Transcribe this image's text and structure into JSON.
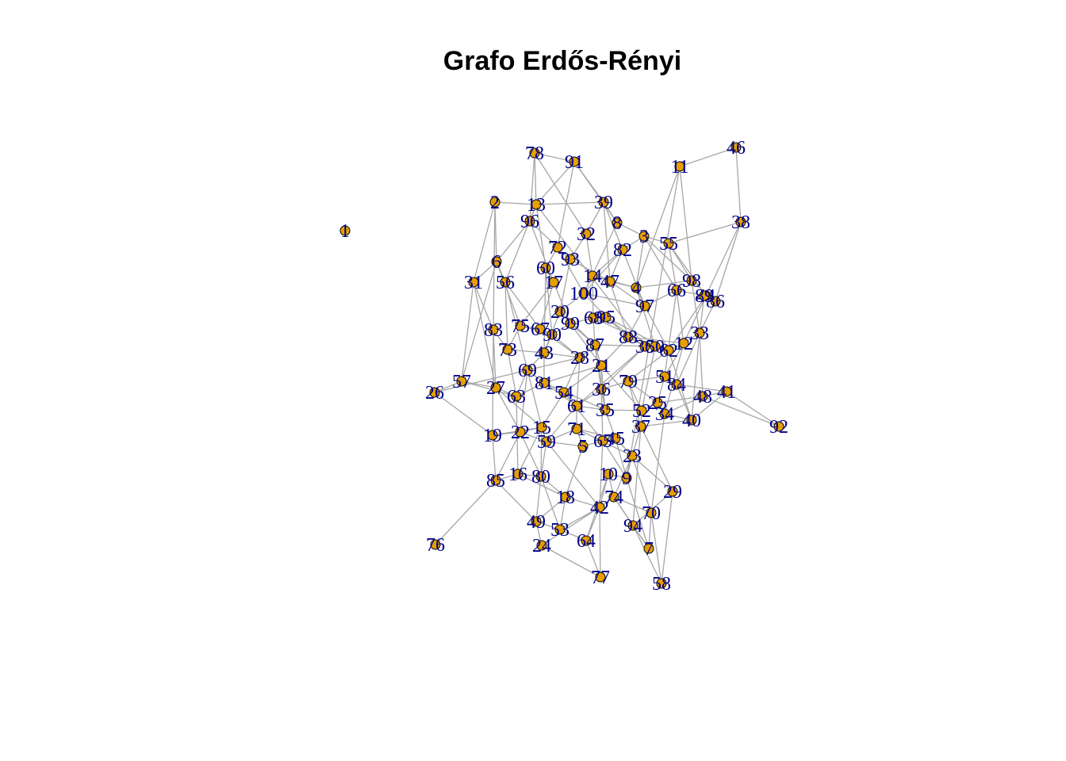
{
  "title": "Grafo Erdős-Rényi",
  "colors": {
    "vertex": "#e69f00",
    "vertex_border": "#000000",
    "label": "#00008b",
    "edge": "#a6a6a6"
  },
  "node_ids": [
    "1",
    "2",
    "3",
    "4",
    "5",
    "6",
    "7",
    "8",
    "9",
    "10",
    "11",
    "12",
    "13",
    "14",
    "15",
    "16",
    "17",
    "18",
    "19",
    "20",
    "21",
    "22",
    "23",
    "24",
    "25",
    "26",
    "27",
    "28",
    "29",
    "30",
    "31",
    "32",
    "33",
    "34",
    "35",
    "36",
    "37",
    "38",
    "39",
    "40",
    "41",
    "42",
    "43",
    "44",
    "45",
    "46",
    "47",
    "48",
    "49",
    "50",
    "51",
    "52",
    "53",
    "54",
    "55",
    "56",
    "57",
    "58",
    "59",
    "60",
    "61",
    "62",
    "63",
    "64",
    "65",
    "66",
    "67",
    "68",
    "69",
    "70",
    "71",
    "72",
    "73",
    "74",
    "75",
    "76",
    "77",
    "78",
    "79",
    "80",
    "81",
    "82",
    "83",
    "84",
    "85",
    "86",
    "87",
    "88",
    "89",
    "90",
    "91",
    "92",
    "93",
    "94",
    "95",
    "96",
    "97",
    "98",
    "99",
    "100"
  ]
}
